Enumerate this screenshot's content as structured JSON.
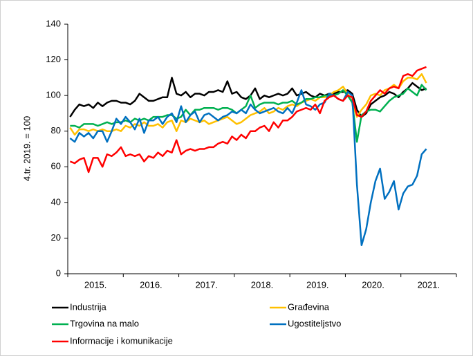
{
  "chart_data": {
    "type": "line",
    "y_label": "4.tr. 2019. = 100",
    "categories": [
      null,
      null,
      null,
      null,
      null,
      null,
      "2015.",
      null,
      null,
      null,
      null,
      null,
      null,
      null,
      null,
      null,
      null,
      null,
      "2016.",
      null,
      null,
      null,
      null,
      null,
      null,
      null,
      null,
      null,
      null,
      null,
      "2017.",
      null,
      null,
      null,
      null,
      null,
      null,
      null,
      null,
      null,
      null,
      null,
      "2018.",
      null,
      null,
      null,
      null,
      null,
      null,
      null,
      null,
      null,
      null,
      null,
      "2019.",
      null,
      null,
      null,
      null,
      null,
      null,
      null,
      null,
      null,
      null,
      null,
      "2020.",
      null,
      null,
      null,
      null,
      null,
      null,
      null,
      null,
      null,
      null,
      null,
      "2021.",
      null,
      null,
      null,
      null,
      null
    ],
    "ylim": [
      0,
      140
    ],
    "yticks": [
      0,
      20,
      40,
      60,
      80,
      100,
      120,
      140
    ],
    "legend": "bottom",
    "series": [
      {
        "name": "Industrija",
        "color": "#000000",
        "values": [
          88,
          92,
          95,
          94,
          95,
          93,
          96,
          94,
          96,
          97,
          97,
          96,
          96,
          95,
          97,
          101,
          99,
          97,
          97,
          98,
          99,
          99,
          110,
          101,
          100,
          102,
          99,
          101,
          101,
          100,
          102,
          102,
          103,
          102,
          108,
          101,
          102,
          99,
          98,
          100,
          104,
          98,
          100,
          99,
          100,
          101,
          100,
          101,
          104,
          100,
          101,
          102,
          100,
          99,
          101,
          100,
          101,
          101,
          102,
          102,
          103,
          101,
          92,
          88,
          90,
          95,
          97,
          99,
          100,
          102,
          101,
          99,
          102,
          104,
          107,
          105,
          103,
          104,
          null,
          null,
          null,
          null,
          null,
          null
        ]
      },
      {
        "name": "Građevina",
        "color": "#ffc000",
        "values": [
          82,
          78,
          81,
          81,
          80,
          81,
          80,
          81,
          80,
          80,
          81,
          80,
          83,
          82,
          84,
          83,
          85,
          83,
          83,
          84,
          82,
          85,
          86,
          80,
          86,
          85,
          87,
          86,
          85,
          86,
          84,
          85,
          86,
          87,
          88,
          86,
          84,
          85,
          87,
          89,
          90,
          91,
          93,
          90,
          91,
          93,
          92,
          94,
          95,
          94,
          96,
          97,
          98,
          97,
          99,
          99,
          100,
          102,
          103,
          105,
          101,
          96,
          88,
          92,
          95,
          100,
          101,
          100,
          103,
          104,
          106,
          104,
          108,
          110,
          110,
          109,
          112,
          107,
          null,
          null,
          null,
          null,
          null,
          null
        ]
      },
      {
        "name": "Trgovina na malo",
        "color": "#00b050",
        "values": [
          83,
          83,
          82,
          84,
          84,
          84,
          83,
          84,
          85,
          84,
          85,
          85,
          86,
          85,
          87,
          86,
          87,
          86,
          88,
          88,
          88,
          89,
          89,
          87,
          88,
          92,
          89,
          92,
          92,
          93,
          93,
          93,
          92,
          93,
          93,
          92,
          90,
          92,
          94,
          100,
          93,
          95,
          96,
          96,
          96,
          95,
          96,
          96,
          97,
          95,
          96,
          98,
          98,
          99,
          99,
          100,
          100,
          100,
          101,
          103,
          100,
          96,
          74,
          89,
          91,
          92,
          92,
          91,
          94,
          97,
          99,
          100,
          101,
          104,
          102,
          100,
          106,
          103,
          null,
          null,
          null,
          null,
          null,
          null
        ]
      },
      {
        "name": "Ugostiteljstvo",
        "color": "#0070c0",
        "values": [
          76,
          74,
          79,
          77,
          79,
          76,
          80,
          80,
          74,
          80,
          87,
          84,
          88,
          85,
          81,
          87,
          79,
          86,
          86,
          88,
          84,
          88,
          90,
          85,
          94,
          85,
          89,
          91,
          85,
          89,
          90,
          88,
          86,
          88,
          89,
          91,
          90,
          92,
          90,
          95,
          92,
          90,
          91,
          92,
          93,
          91,
          90,
          93,
          90,
          96,
          103,
          95,
          94,
          92,
          95,
          96,
          101,
          100,
          98,
          97,
          102,
          100,
          50,
          16,
          25,
          40,
          52,
          59,
          42,
          46,
          52,
          36,
          45,
          49,
          50,
          55,
          67,
          70,
          null,
          null,
          null,
          null,
          null,
          null
        ]
      },
      {
        "name": "Informacije i komunikacije",
        "color": "#ff0000",
        "values": [
          63,
          62,
          64,
          65,
          57,
          65,
          65,
          60,
          67,
          66,
          68,
          71,
          66,
          67,
          66,
          67,
          63,
          66,
          65,
          68,
          66,
          69,
          68,
          75,
          67,
          69,
          70,
          69,
          70,
          70,
          71,
          71,
          73,
          74,
          73,
          77,
          75,
          78,
          76,
          80,
          80,
          82,
          83,
          80,
          85,
          82,
          86,
          86,
          88,
          91,
          92,
          93,
          92,
          95,
          90,
          97,
          99,
          100,
          98,
          97,
          100,
          99,
          89,
          88,
          91,
          97,
          100,
          103,
          101,
          104,
          105,
          104,
          111,
          112,
          111,
          114,
          115,
          116,
          null,
          null,
          null,
          null,
          null,
          null
        ]
      }
    ]
  }
}
